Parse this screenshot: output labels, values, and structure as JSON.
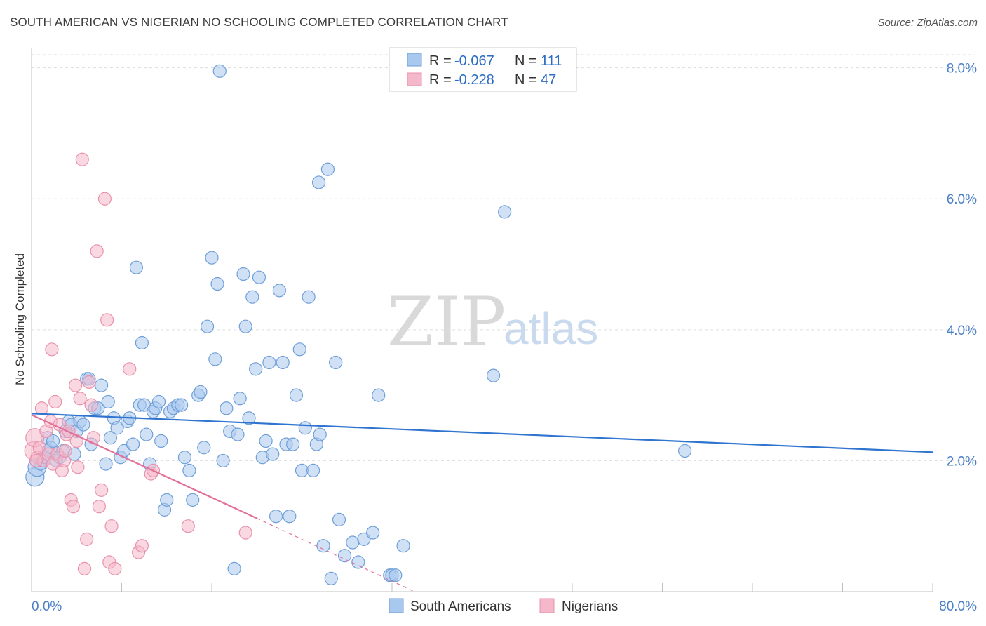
{
  "title": "SOUTH AMERICAN VS NIGERIAN NO SCHOOLING COMPLETED CORRELATION CHART",
  "source": "Source: ZipAtlas.com",
  "watermark": {
    "zip": "ZIP",
    "atlas": "atlas"
  },
  "colors": {
    "blue_fill": "#a9c8ee",
    "blue_stroke": "#6f9fd8",
    "blue_line": "#2f74cf",
    "pink_fill": "#f5b8cb",
    "pink_stroke": "#e892ad",
    "pink_line": "#e3709a",
    "grid": "#dddddd",
    "axis": "#c0c0c0",
    "tick_text": "#4a7fc8"
  },
  "legend": {
    "rows": [
      {
        "r_label": "R =",
        "r_value": "-0.067",
        "n_label": "N =",
        "n_value": "111",
        "series": "blue"
      },
      {
        "r_label": "R =",
        "r_value": "-0.228",
        "n_label": "N =",
        "n_value": "47",
        "series": "pink"
      }
    ]
  },
  "bottom_legend": [
    {
      "label": "South Americans",
      "series": "blue"
    },
    {
      "label": "Nigerians",
      "series": "pink"
    }
  ],
  "chart_data": {
    "type": "scatter",
    "title": "SOUTH AMERICAN VS NIGERIAN NO SCHOOLING COMPLETED CORRELATION CHART",
    "xlabel": "",
    "ylabel": "No Schooling Completed",
    "xlim": [
      0,
      80
    ],
    "ylim": [
      0,
      8.2
    ],
    "x_tick_labels": [
      "0.0%",
      "80.0%"
    ],
    "y_ticks": [
      2,
      4,
      6,
      8
    ],
    "y_tick_labels": [
      "2.0%",
      "4.0%",
      "6.0%",
      "8.0%"
    ],
    "grid": true,
    "series": [
      {
        "name": "South Americans",
        "color": "blue",
        "trend": {
          "x": [
            0,
            80
          ],
          "y": [
            2.72,
            2.13
          ]
        },
        "points": [
          [
            0.3,
            1.75
          ],
          [
            0.5,
            1.9
          ],
          [
            0.8,
            1.95
          ],
          [
            1.0,
            2.0
          ],
          [
            1.2,
            2.05
          ],
          [
            1.4,
            2.35
          ],
          [
            1.5,
            2.15
          ],
          [
            1.7,
            2.2
          ],
          [
            1.9,
            2.3
          ],
          [
            2.2,
            2.0
          ],
          [
            2.5,
            2.05
          ],
          [
            2.8,
            2.15
          ],
          [
            3.0,
            2.45
          ],
          [
            3.3,
            2.6
          ],
          [
            3.5,
            2.55
          ],
          [
            3.8,
            2.1
          ],
          [
            4.0,
            2.45
          ],
          [
            4.3,
            2.6
          ],
          [
            4.6,
            2.55
          ],
          [
            4.9,
            3.25
          ],
          [
            5.1,
            3.25
          ],
          [
            5.3,
            2.25
          ],
          [
            5.6,
            2.8
          ],
          [
            5.9,
            2.8
          ],
          [
            6.2,
            3.15
          ],
          [
            6.6,
            1.95
          ],
          [
            6.8,
            2.9
          ],
          [
            7.0,
            2.35
          ],
          [
            7.3,
            2.65
          ],
          [
            7.6,
            2.5
          ],
          [
            7.9,
            2.05
          ],
          [
            8.2,
            2.15
          ],
          [
            8.5,
            2.6
          ],
          [
            8.7,
            2.65
          ],
          [
            9.0,
            2.25
          ],
          [
            9.3,
            4.95
          ],
          [
            9.6,
            2.85
          ],
          [
            9.8,
            3.8
          ],
          [
            10.0,
            2.85
          ],
          [
            10.2,
            2.4
          ],
          [
            10.5,
            1.95
          ],
          [
            10.8,
            2.75
          ],
          [
            11.0,
            2.8
          ],
          [
            11.3,
            2.9
          ],
          [
            11.5,
            2.3
          ],
          [
            11.8,
            1.25
          ],
          [
            12.0,
            1.4
          ],
          [
            12.3,
            2.75
          ],
          [
            12.6,
            2.8
          ],
          [
            13.0,
            2.85
          ],
          [
            13.3,
            2.85
          ],
          [
            13.6,
            2.05
          ],
          [
            14.0,
            1.85
          ],
          [
            14.3,
            1.4
          ],
          [
            14.8,
            3.0
          ],
          [
            15.0,
            3.05
          ],
          [
            15.3,
            2.2
          ],
          [
            15.6,
            4.05
          ],
          [
            16.0,
            5.1
          ],
          [
            16.3,
            3.55
          ],
          [
            16.5,
            4.7
          ],
          [
            16.7,
            7.95
          ],
          [
            17.0,
            2.0
          ],
          [
            17.3,
            2.8
          ],
          [
            17.6,
            2.45
          ],
          [
            18.0,
            0.35
          ],
          [
            18.3,
            2.4
          ],
          [
            18.5,
            2.95
          ],
          [
            18.8,
            4.85
          ],
          [
            19.0,
            4.05
          ],
          [
            19.3,
            2.65
          ],
          [
            19.6,
            4.5
          ],
          [
            19.9,
            3.4
          ],
          [
            20.2,
            4.8
          ],
          [
            20.5,
            2.05
          ],
          [
            20.8,
            2.3
          ],
          [
            21.1,
            3.5
          ],
          [
            21.4,
            2.1
          ],
          [
            21.7,
            1.15
          ],
          [
            22.0,
            4.6
          ],
          [
            22.3,
            3.5
          ],
          [
            22.6,
            2.25
          ],
          [
            22.9,
            1.15
          ],
          [
            23.2,
            2.25
          ],
          [
            23.5,
            3.0
          ],
          [
            23.8,
            3.7
          ],
          [
            24.0,
            1.85
          ],
          [
            24.3,
            2.5
          ],
          [
            24.6,
            4.5
          ],
          [
            25.0,
            1.85
          ],
          [
            25.3,
            2.25
          ],
          [
            25.6,
            2.4
          ],
          [
            25.9,
            0.7
          ],
          [
            26.3,
            6.45
          ],
          [
            26.6,
            0.2
          ],
          [
            27.0,
            3.5
          ],
          [
            27.3,
            1.1
          ],
          [
            27.8,
            0.55
          ],
          [
            28.5,
            0.75
          ],
          [
            29.0,
            0.45
          ],
          [
            29.5,
            0.8
          ],
          [
            30.3,
            0.9
          ],
          [
            30.8,
            3.0
          ],
          [
            31.8,
            0.25
          ],
          [
            32.0,
            0.25
          ],
          [
            32.3,
            0.25
          ],
          [
            33.0,
            0.7
          ],
          [
            41.0,
            3.3
          ],
          [
            42.0,
            5.8
          ],
          [
            58.0,
            2.15
          ],
          [
            25.5,
            6.25
          ]
        ]
      },
      {
        "name": "Nigerians",
        "color": "pink",
        "trend": {
          "x": [
            0,
            20
          ],
          "y": [
            2.7,
            1.12
          ]
        },
        "trend_dashed": {
          "x": [
            20,
            34
          ],
          "y": [
            1.12,
            0.0
          ]
        },
        "points": [
          [
            0.2,
            2.15
          ],
          [
            0.3,
            2.35
          ],
          [
            0.5,
            2.05
          ],
          [
            0.7,
            2.2
          ],
          [
            0.9,
            2.8
          ],
          [
            1.1,
            2.0
          ],
          [
            1.3,
            2.45
          ],
          [
            1.5,
            2.1
          ],
          [
            1.7,
            2.6
          ],
          [
            1.9,
            1.95
          ],
          [
            2.1,
            2.9
          ],
          [
            2.3,
            2.1
          ],
          [
            2.5,
            2.55
          ],
          [
            2.7,
            1.85
          ],
          [
            2.9,
            2.0
          ],
          [
            3.1,
            2.4
          ],
          [
            3.3,
            2.45
          ],
          [
            3.5,
            1.4
          ],
          [
            3.7,
            1.3
          ],
          [
            3.9,
            3.15
          ],
          [
            4.1,
            1.9
          ],
          [
            4.3,
            2.95
          ],
          [
            4.5,
            6.6
          ],
          [
            4.7,
            0.35
          ],
          [
            4.9,
            0.8
          ],
          [
            5.1,
            3.2
          ],
          [
            5.3,
            2.85
          ],
          [
            5.5,
            2.35
          ],
          [
            5.8,
            5.2
          ],
          [
            6.0,
            1.3
          ],
          [
            6.2,
            1.55
          ],
          [
            6.5,
            6.0
          ],
          [
            6.7,
            4.15
          ],
          [
            6.9,
            0.45
          ],
          [
            7.1,
            1.0
          ],
          [
            7.4,
            0.35
          ],
          [
            8.7,
            3.4
          ],
          [
            9.5,
            0.6
          ],
          [
            9.8,
            0.7
          ],
          [
            10.6,
            1.8
          ],
          [
            10.8,
            1.85
          ],
          [
            13.9,
            1.0
          ],
          [
            19.0,
            0.9
          ],
          [
            1.8,
            3.7
          ],
          [
            4.0,
            2.3
          ],
          [
            3.0,
            2.15
          ],
          [
            0.4,
            2.0
          ]
        ]
      }
    ]
  }
}
